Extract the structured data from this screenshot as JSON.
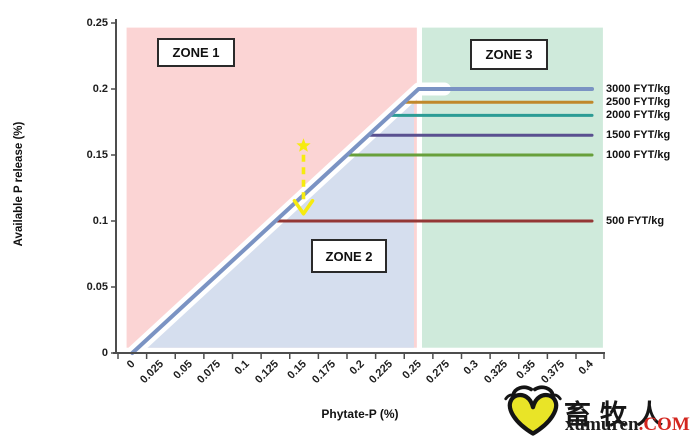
{
  "chart_data": {
    "type": "line",
    "title": "",
    "xlabel": "Phytate-P (%)",
    "ylabel": "Available P release (%)",
    "xlim": [
      0,
      0.425
    ],
    "ylim": [
      0,
      0.25
    ],
    "x_ticks": [
      "0",
      "0.025",
      "0.05",
      "0.075",
      "0.1",
      "0.125",
      "0.15",
      "0.175",
      "0.2",
      "0.225",
      "0.25",
      "0.275",
      "0.3",
      "0.325",
      "0.35",
      "0.375",
      "0.4"
    ],
    "y_ticks": [
      "0",
      "0.05",
      "0.1",
      "0.15",
      "0.2",
      "0.25"
    ],
    "grid": false,
    "legend_position": "right-of-plot-line-labels",
    "axis_color": "#4d4d4d",
    "series": [
      {
        "name": "500 FYT/kg",
        "color": "#943735",
        "width": 3,
        "plateau": 0.1,
        "points": [
          [
            0.1275,
            0.092
          ],
          [
            0.1375,
            0.1
          ],
          [
            0.414,
            0.1
          ]
        ]
      },
      {
        "name": "1000 FYT/kg",
        "color": "#68A03B",
        "width": 3,
        "plateau": 0.15,
        "points": [
          [
            0.18,
            0.134
          ],
          [
            0.2,
            0.15
          ],
          [
            0.414,
            0.15
          ]
        ]
      },
      {
        "name": "1500 FYT/kg",
        "color": "#5A5090",
        "width": 3,
        "plateau": 0.165,
        "points": [
          [
            0.19875,
            0.149
          ],
          [
            0.21875,
            0.165
          ],
          [
            0.414,
            0.165
          ]
        ]
      },
      {
        "name": "2000 FYT/kg",
        "color": "#2C9C95",
        "width": 3,
        "plateau": 0.18,
        "points": [
          [
            0.2175,
            0.164
          ],
          [
            0.2375,
            0.18
          ],
          [
            0.414,
            0.18
          ]
        ]
      },
      {
        "name": "2500 FYT/kg",
        "color": "#C0882B",
        "width": 3,
        "plateau": 0.19,
        "points": [
          [
            0.23,
            0.174
          ],
          [
            0.25,
            0.19
          ],
          [
            0.414,
            0.19
          ]
        ]
      },
      {
        "name": "3000 FYT/kg",
        "color": "#7B93C3",
        "width": 4,
        "plateau": 0.2,
        "points": [
          [
            0.0125,
            0
          ],
          [
            0.2625,
            0.2
          ],
          [
            0.414,
            0.2
          ]
        ]
      }
    ],
    "diagonal": {
      "description": "shared response slope y = 0.8 * (x - 0.0125)",
      "start": [
        0.0125,
        0
      ],
      "end": [
        0.2625,
        0.2
      ],
      "glow_color": "#ffffff"
    },
    "zones": [
      {
        "label": "ZONE 1",
        "color": "#FBD4D4",
        "shape": "rect",
        "x0": 0.0075,
        "x1": 0.261,
        "y0": 0.004,
        "y1": 0.2465
      },
      {
        "label": "ZONE 2",
        "color": "#D5DEEE",
        "shape": "polygon",
        "pts": [
          [
            0.0175,
            0.004
          ],
          [
            0.2585,
            0.1968
          ],
          [
            0.2585,
            0.004
          ]
        ]
      },
      {
        "label": "ZONE 3",
        "color": "#CFEADB",
        "shape": "rect",
        "x0": 0.2655,
        "x1": 0.4235,
        "y0": 0.004,
        "y1": 0.2465
      }
    ],
    "annotation": {
      "type": "dashed-down-arrow-with-star",
      "color": "#F6EB0F",
      "x": 0.162,
      "y_top": 0.157,
      "y_bottom": 0.107
    }
  },
  "watermark": {
    "cn": "畜牧人",
    "en": "xumuren",
    "tld": ".COM"
  }
}
